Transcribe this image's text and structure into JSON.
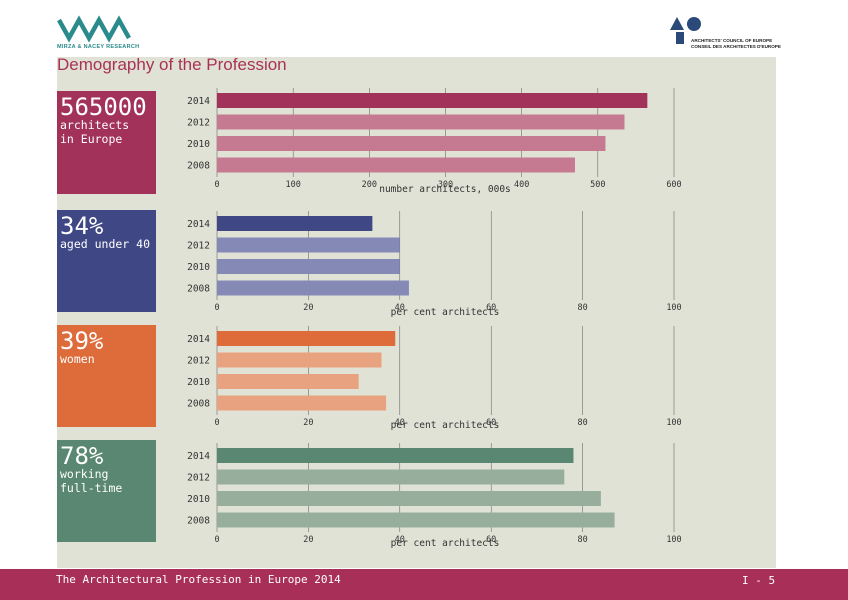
{
  "header": {
    "org_name": "MIRZA & NACEY RESEARCH",
    "ace_line1": "ARCHITECTS' COUNCIL OF EUROPE",
    "ace_line2": "CONSEIL DES ARCHITECTES D'EUROPE",
    "title": "Demography of the Profession"
  },
  "stats": [
    {
      "value": "565000",
      "label": "architects\nin Europe",
      "color": "#a3325a"
    },
    {
      "value": "34%",
      "label": "aged under 40",
      "color": "#3f4884"
    },
    {
      "value": "39%",
      "label": "women",
      "color": "#de6b3a"
    },
    {
      "value": "78%",
      "label": "working\nfull-time",
      "color": "#5a8771"
    }
  ],
  "chart_data": [
    {
      "type": "bar",
      "orientation": "horizontal",
      "categories": [
        "2014",
        "2012",
        "2010",
        "2008"
      ],
      "values": [
        565,
        535,
        510,
        470
      ],
      "xlabel": "number architects, 000s",
      "xlim": [
        0,
        600
      ],
      "ticks": [
        0,
        100,
        200,
        300,
        400,
        500,
        600
      ],
      "colors": [
        "#a3325a",
        "#c57a92",
        "#c57a92",
        "#c57a92"
      ]
    },
    {
      "type": "bar",
      "orientation": "horizontal",
      "categories": [
        "2014",
        "2012",
        "2010",
        "2008"
      ],
      "values": [
        34,
        40,
        40,
        42
      ],
      "xlabel": "per cent architects",
      "xlim": [
        0,
        100
      ],
      "ticks": [
        0,
        20,
        40,
        60,
        80,
        100
      ],
      "colors": [
        "#3f4884",
        "#8489b6",
        "#8489b6",
        "#8489b6"
      ]
    },
    {
      "type": "bar",
      "orientation": "horizontal",
      "categories": [
        "2014",
        "2012",
        "2010",
        "2008"
      ],
      "values": [
        39,
        36,
        31,
        37
      ],
      "xlabel": "per cent architects",
      "xlim": [
        0,
        100
      ],
      "ticks": [
        0,
        20,
        40,
        60,
        80,
        100
      ],
      "colors": [
        "#de6b3a",
        "#e9a27f",
        "#e9a27f",
        "#e9a27f"
      ]
    },
    {
      "type": "bar",
      "orientation": "horizontal",
      "categories": [
        "2014",
        "2012",
        "2010",
        "2008"
      ],
      "values": [
        78,
        76,
        84,
        87
      ],
      "xlabel": "per cent architects",
      "xlim": [
        0,
        100
      ],
      "ticks": [
        0,
        20,
        40,
        60,
        80,
        100
      ],
      "colors": [
        "#5a8771",
        "#97ae9d",
        "#97ae9d",
        "#97ae9d"
      ]
    }
  ],
  "footer": {
    "left": "The Architectural Profession in Europe 2014",
    "right": "I - 5"
  }
}
